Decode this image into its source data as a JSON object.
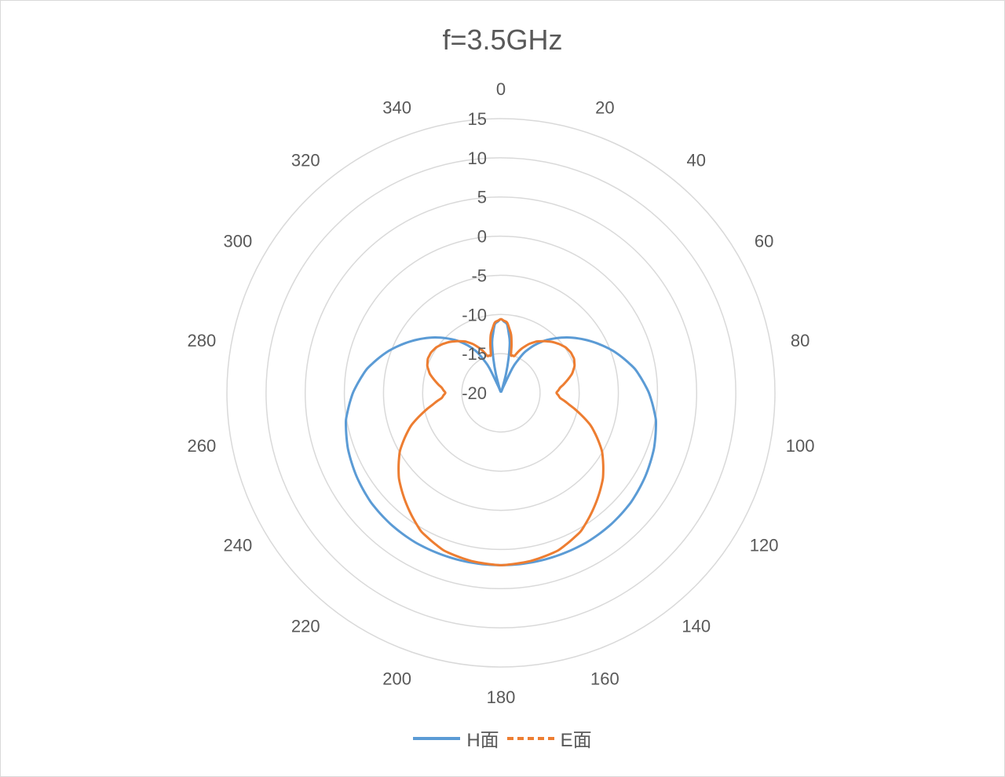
{
  "chart_data": {
    "type": "radar",
    "title": "f=3.5GHz",
    "angle_labels": [
      "0",
      "20",
      "40",
      "60",
      "80",
      "100",
      "120",
      "140",
      "160",
      "180",
      "200",
      "220",
      "240",
      "260",
      "280",
      "300",
      "320",
      "340"
    ],
    "radial_ticks": [
      "15",
      "10",
      "5",
      "0",
      "-5",
      "-10",
      "-15",
      "-20"
    ],
    "rlim": [
      -25,
      15
    ],
    "grid": true,
    "legend_position": "bottom",
    "series": [
      {
        "name": "H面",
        "color": "#5b9bd5",
        "dash": "solid",
        "theta": [
          0,
          5,
          10,
          15,
          20,
          25,
          30,
          35,
          40,
          50,
          60,
          70,
          80,
          90,
          100,
          110,
          120,
          130,
          140,
          150,
          160,
          170,
          180,
          190,
          200,
          210,
          220,
          230,
          240,
          250,
          260,
          270,
          280,
          290,
          300,
          310,
          320,
          325,
          330,
          335,
          340,
          345,
          350,
          355
        ],
        "values": [
          -10.6,
          -11.2,
          -13.5,
          -17.5,
          -21.5,
          -16.5,
          -14.1,
          -12.6,
          -11.3,
          -9.0,
          -6.8,
          -4.6,
          -2.6,
          -1.1,
          0.1,
          0.8,
          1.3,
          1.7,
          1.9,
          2.0,
          2.0,
          2.0,
          2.0,
          2.0,
          2.0,
          2.0,
          1.9,
          1.7,
          1.3,
          0.8,
          0.1,
          -1.1,
          -2.6,
          -4.6,
          -6.8,
          -9.0,
          -11.3,
          -12.6,
          -14.1,
          -16.5,
          -21.5,
          -17.5,
          -13.5,
          -11.2
        ]
      },
      {
        "name": "E面",
        "color": "#ed7d31",
        "dash": "dashed",
        "theta": [
          0,
          5,
          10,
          15,
          20,
          25,
          30,
          35,
          40,
          45,
          50,
          55,
          60,
          65,
          70,
          75,
          80,
          85,
          90,
          95,
          100,
          105,
          110,
          120,
          130,
          140,
          150,
          160,
          170,
          180,
          190,
          200,
          210,
          220,
          230,
          240,
          250,
          255,
          260,
          265,
          270,
          275,
          280,
          285,
          290,
          295,
          300,
          305,
          310,
          315,
          320,
          325,
          330,
          335,
          340,
          345,
          350,
          355
        ],
        "values": [
          -10.6,
          -11.0,
          -12.5,
          -15.0,
          -15.0,
          -13.8,
          -12.8,
          -12.0,
          -11.4,
          -10.8,
          -10.3,
          -9.9,
          -9.7,
          -9.7,
          -10.0,
          -10.6,
          -11.5,
          -12.4,
          -12.9,
          -12.4,
          -11.1,
          -9.5,
          -7.8,
          -5.1,
          -3.0,
          -1.3,
          0.4,
          1.4,
          1.8,
          2.0,
          1.8,
          1.4,
          0.4,
          -1.3,
          -3.0,
          -5.1,
          -7.8,
          -9.5,
          -11.1,
          -12.4,
          -12.9,
          -12.4,
          -11.5,
          -10.6,
          -10.0,
          -9.7,
          -9.7,
          -9.9,
          -10.3,
          -10.8,
          -11.4,
          -12.0,
          -12.8,
          -13.8,
          -15.0,
          -15.0,
          -12.5,
          -11.0
        ]
      }
    ]
  }
}
